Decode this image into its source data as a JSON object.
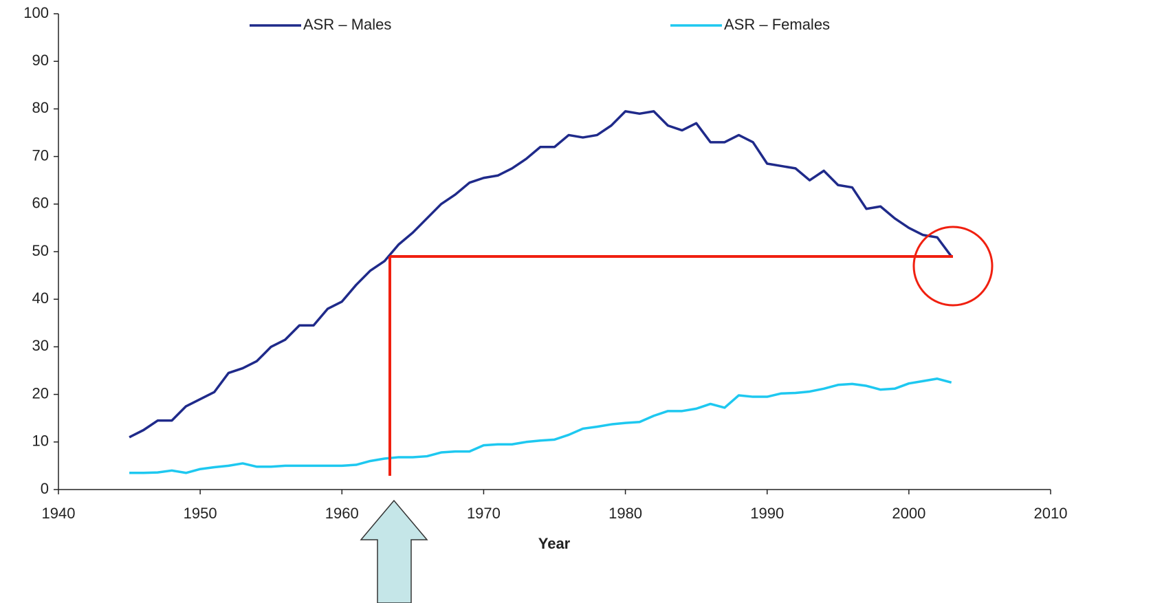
{
  "chart_data": {
    "type": "line",
    "xlabel": "Year",
    "x": [
      1945,
      1946,
      1947,
      1948,
      1949,
      1950,
      1951,
      1952,
      1953,
      1954,
      1955,
      1956,
      1957,
      1958,
      1959,
      1960,
      1961,
      1962,
      1963,
      1964,
      1965,
      1966,
      1967,
      1968,
      1969,
      1970,
      1971,
      1972,
      1973,
      1974,
      1975,
      1976,
      1977,
      1978,
      1979,
      1980,
      1981,
      1982,
      1983,
      1984,
      1985,
      1986,
      1987,
      1988,
      1989,
      1990,
      1991,
      1992,
      1993,
      1994,
      1995,
      1996,
      1997,
      1998,
      1999,
      2000,
      2001,
      2002,
      2003
    ],
    "series": [
      {
        "name": "ASR – Males",
        "color": "#1f2a8a",
        "values": [
          11,
          12.5,
          14.5,
          14.5,
          17.5,
          19,
          20.5,
          24.5,
          25.5,
          27,
          30,
          31.5,
          34.5,
          34.5,
          38,
          39.5,
          43,
          46,
          48,
          51.5,
          54,
          57,
          60,
          62,
          64.5,
          65.5,
          66,
          67.5,
          69.5,
          72,
          72,
          74.5,
          74,
          74.5,
          76.5,
          79.5,
          79,
          79.5,
          76.5,
          75.5,
          77,
          73,
          73,
          74.5,
          73,
          68.5,
          68,
          67.5,
          65,
          67,
          64,
          63.5,
          59,
          59.5,
          57,
          55,
          53.5,
          53,
          49
        ]
      },
      {
        "name": "ASR – Females",
        "color": "#1ec8f0",
        "values": [
          3.5,
          3.5,
          3.6,
          4,
          3.5,
          4.3,
          4.7,
          5,
          5.5,
          4.8,
          4.8,
          5,
          5,
          5,
          5,
          5,
          5.2,
          6,
          6.5,
          6.8,
          6.8,
          7,
          7.8,
          8,
          8,
          9.3,
          9.5,
          9.5,
          10,
          10.3,
          10.5,
          11.5,
          12.8,
          13.2,
          13.7,
          14,
          14.2,
          15.5,
          16.5,
          16.5,
          17,
          18,
          17.2,
          19.8,
          19.5,
          19.5,
          20.2,
          20.3,
          20.6,
          21.2,
          22,
          22.2,
          21.8,
          21,
          21.2,
          22.3,
          22.8,
          23.3,
          22.5
        ]
      }
    ],
    "xlim": [
      1940,
      2010
    ],
    "xticks": [
      1940,
      1950,
      1960,
      1970,
      1980,
      1990,
      2000,
      2010
    ],
    "ylim": [
      0,
      100
    ],
    "yticks": [
      0,
      10,
      20,
      30,
      40,
      50,
      60,
      70,
      80,
      90,
      100
    ],
    "legend": "top"
  }
}
